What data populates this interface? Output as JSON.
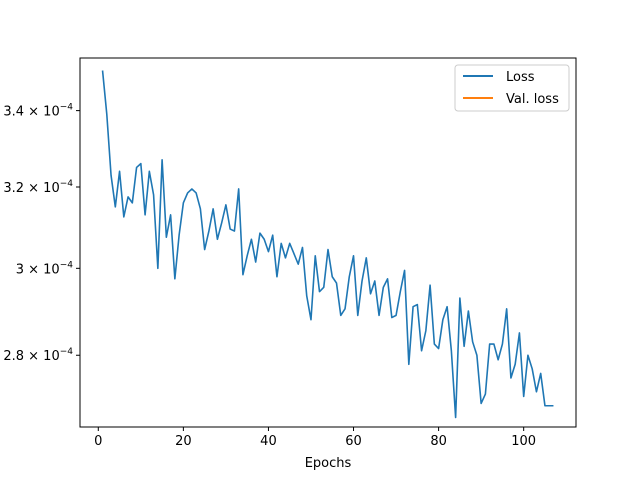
{
  "chart_data": {
    "type": "line",
    "xlabel": "Epochs",
    "ylabel": "",
    "title": "",
    "xlim": [
      -4.3,
      112.3
    ],
    "ylim": [
      0.0002645,
      0.0003545
    ],
    "y_scale": "log",
    "grid": false,
    "legend_position": "top-right",
    "x_ticks": [
      0,
      20,
      40,
      60,
      80,
      100
    ],
    "x_tick_labels": [
      "0",
      "20",
      "40",
      "60",
      "80",
      "100"
    ],
    "y_ticks": [
      0.00028,
      0.0003,
      0.00032,
      0.00034
    ],
    "y_tick_labels": [
      {
        "mantissa": "2.8",
        "times": "×",
        "base": "10",
        "exponent": "−4"
      },
      {
        "mantissa": "3",
        "times": "×",
        "base": "10",
        "exponent": "−4"
      },
      {
        "mantissa": "3.2",
        "times": "×",
        "base": "10",
        "exponent": "−4"
      },
      {
        "mantissa": "3.4",
        "times": "×",
        "base": "10",
        "exponent": "−4"
      }
    ],
    "series": [
      {
        "name": "Loss",
        "color": "#1f77b4",
        "x": [
          1,
          2,
          3,
          4,
          5,
          6,
          7,
          8,
          9,
          10,
          11,
          12,
          13,
          14,
          15,
          16,
          17,
          18,
          19,
          20,
          21,
          22,
          23,
          24,
          25,
          26,
          27,
          28,
          29,
          30,
          31,
          32,
          33,
          34,
          35,
          36,
          37,
          38,
          39,
          40,
          41,
          42,
          43,
          44,
          45,
          46,
          47,
          48,
          49,
          50,
          51,
          52,
          53,
          54,
          55,
          56,
          57,
          58,
          59,
          60,
          61,
          62,
          63,
          64,
          65,
          66,
          67,
          68,
          69,
          70,
          71,
          72,
          73,
          74,
          75,
          76,
          77,
          78,
          79,
          80,
          81,
          82,
          83,
          84,
          85,
          86,
          87,
          88,
          89,
          90,
          91,
          92,
          93,
          94,
          95,
          96,
          97,
          98,
          99,
          100,
          101,
          102,
          103,
          104,
          105,
          106,
          107
        ],
        "values": [
          0.000351,
          0.000339,
          0.000323,
          0.000315,
          0.000324,
          0.0003125,
          0.0003175,
          0.000316,
          0.000325,
          0.000326,
          0.000313,
          0.000324,
          0.000318,
          0.0003,
          0.000327,
          0.0003075,
          0.000313,
          0.0002975,
          0.000308,
          0.000316,
          0.0003185,
          0.0003195,
          0.0003185,
          0.0003145,
          0.0003045,
          0.000309,
          0.0003145,
          0.000307,
          0.000311,
          0.0003155,
          0.0003095,
          0.000309,
          0.0003195,
          0.0002985,
          0.000303,
          0.000307,
          0.0003015,
          0.0003085,
          0.000307,
          0.000304,
          0.000308,
          0.000298,
          0.000306,
          0.0003025,
          0.000306,
          0.0003035,
          0.000301,
          0.000305,
          0.0002935,
          0.000288,
          0.000303,
          0.0002945,
          0.0002955,
          0.0003045,
          0.000298,
          0.0002965,
          0.000289,
          0.0002905,
          0.000298,
          0.000303,
          0.000289,
          0.000297,
          0.0003025,
          0.000294,
          0.000297,
          0.000289,
          0.0002955,
          0.0002975,
          0.0002885,
          0.000289,
          0.0002945,
          0.0002995,
          0.000278,
          0.000291,
          0.0002915,
          0.000281,
          0.0002855,
          0.000296,
          0.0002825,
          0.0002815,
          0.000288,
          0.000291,
          0.000281,
          0.0002665,
          0.000293,
          0.000282,
          0.00029,
          0.000283,
          0.00028,
          0.0002695,
          0.0002715,
          0.0002825,
          0.0002825,
          0.000279,
          0.0002825,
          0.0002905,
          0.000275,
          0.000278,
          0.000285,
          0.000271,
          0.00028,
          0.000277,
          0.000272,
          0.000276,
          0.000269,
          0.000269,
          0.000269
        ]
      },
      {
        "name": "Val. loss",
        "color": "#ff7f0e",
        "x": [],
        "values": []
      }
    ]
  }
}
